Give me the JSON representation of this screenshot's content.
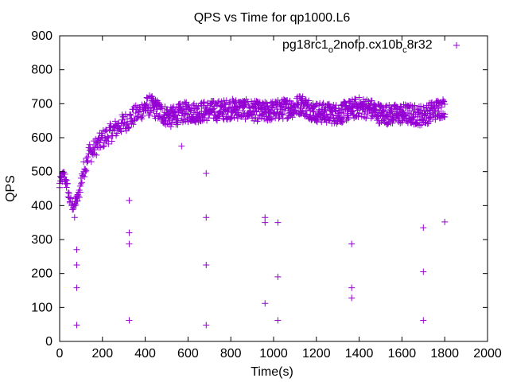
{
  "chart_data": {
    "type": "scatter",
    "title": "QPS vs Time for qp1000.L6",
    "xlabel": "Time(s)",
    "ylabel": "QPS",
    "xlim": [
      0,
      2000
    ],
    "ylim": [
      0,
      900
    ],
    "xticks": [
      "0",
      "200",
      "400",
      "600",
      "800",
      "1000",
      "1200",
      "1400",
      "1600",
      "1800",
      "2000"
    ],
    "yticks": [
      "0",
      "100",
      "200",
      "300",
      "400",
      "500",
      "600",
      "700",
      "800",
      "900"
    ],
    "grid": false,
    "legend_position": "top-right",
    "marker": "+",
    "color": "#9400d3",
    "series": [
      {
        "name_parts": [
          "pg18rc1",
          "o",
          "2nofp.cx10b",
          "c",
          "8r32"
        ],
        "main_trend": [
          [
            0,
            460
          ],
          [
            10,
            480
          ],
          [
            20,
            490
          ],
          [
            30,
            470
          ],
          [
            40,
            440
          ],
          [
            50,
            410
          ],
          [
            60,
            400
          ],
          [
            70,
            405
          ],
          [
            80,
            415
          ],
          [
            90,
            430
          ],
          [
            100,
            470
          ],
          [
            110,
            500
          ],
          [
            120,
            520
          ],
          [
            130,
            545
          ],
          [
            140,
            560
          ],
          [
            150,
            555
          ],
          [
            160,
            565
          ],
          [
            170,
            575
          ],
          [
            180,
            580
          ],
          [
            200,
            595
          ],
          [
            220,
            605
          ],
          [
            240,
            615
          ],
          [
            260,
            625
          ],
          [
            280,
            635
          ],
          [
            300,
            645
          ],
          [
            320,
            650
          ],
          [
            340,
            660
          ],
          [
            360,
            670
          ],
          [
            380,
            680
          ],
          [
            400,
            690
          ],
          [
            420,
            695
          ],
          [
            440,
            690
          ],
          [
            460,
            680
          ],
          [
            480,
            670
          ],
          [
            500,
            665
          ],
          [
            520,
            660
          ],
          [
            540,
            665
          ],
          [
            560,
            670
          ],
          [
            580,
            675
          ],
          [
            600,
            675
          ],
          [
            650,
            675
          ],
          [
            700,
            680
          ],
          [
            750,
            680
          ],
          [
            800,
            685
          ],
          [
            850,
            685
          ],
          [
            900,
            680
          ],
          [
            950,
            675
          ],
          [
            1000,
            680
          ],
          [
            1050,
            685
          ],
          [
            1100,
            690
          ],
          [
            1130,
            700
          ],
          [
            1150,
            690
          ],
          [
            1200,
            675
          ],
          [
            1250,
            672
          ],
          [
            1300,
            670
          ],
          [
            1350,
            680
          ],
          [
            1400,
            690
          ],
          [
            1450,
            685
          ],
          [
            1500,
            670
          ],
          [
            1550,
            668
          ],
          [
            1600,
            670
          ],
          [
            1650,
            668
          ],
          [
            1700,
            665
          ],
          [
            1750,
            680
          ],
          [
            1800,
            690
          ]
        ],
        "outliers": [
          [
            70,
            365
          ],
          [
            80,
            270
          ],
          [
            80,
            225
          ],
          [
            80,
            158
          ],
          [
            80,
            48
          ],
          [
            325,
            415
          ],
          [
            325,
            320
          ],
          [
            325,
            287
          ],
          [
            325,
            62
          ],
          [
            570,
            575
          ],
          [
            685,
            495
          ],
          [
            685,
            365
          ],
          [
            685,
            225
          ],
          [
            685,
            48
          ],
          [
            960,
            365
          ],
          [
            960,
            350
          ],
          [
            960,
            112
          ],
          [
            1020,
            350
          ],
          [
            1020,
            190
          ],
          [
            1020,
            62
          ],
          [
            1365,
            287
          ],
          [
            1365,
            158
          ],
          [
            1365,
            128
          ],
          [
            1700,
            335
          ],
          [
            1700,
            205
          ],
          [
            1700,
            62
          ],
          [
            1800,
            352
          ]
        ]
      }
    ]
  }
}
